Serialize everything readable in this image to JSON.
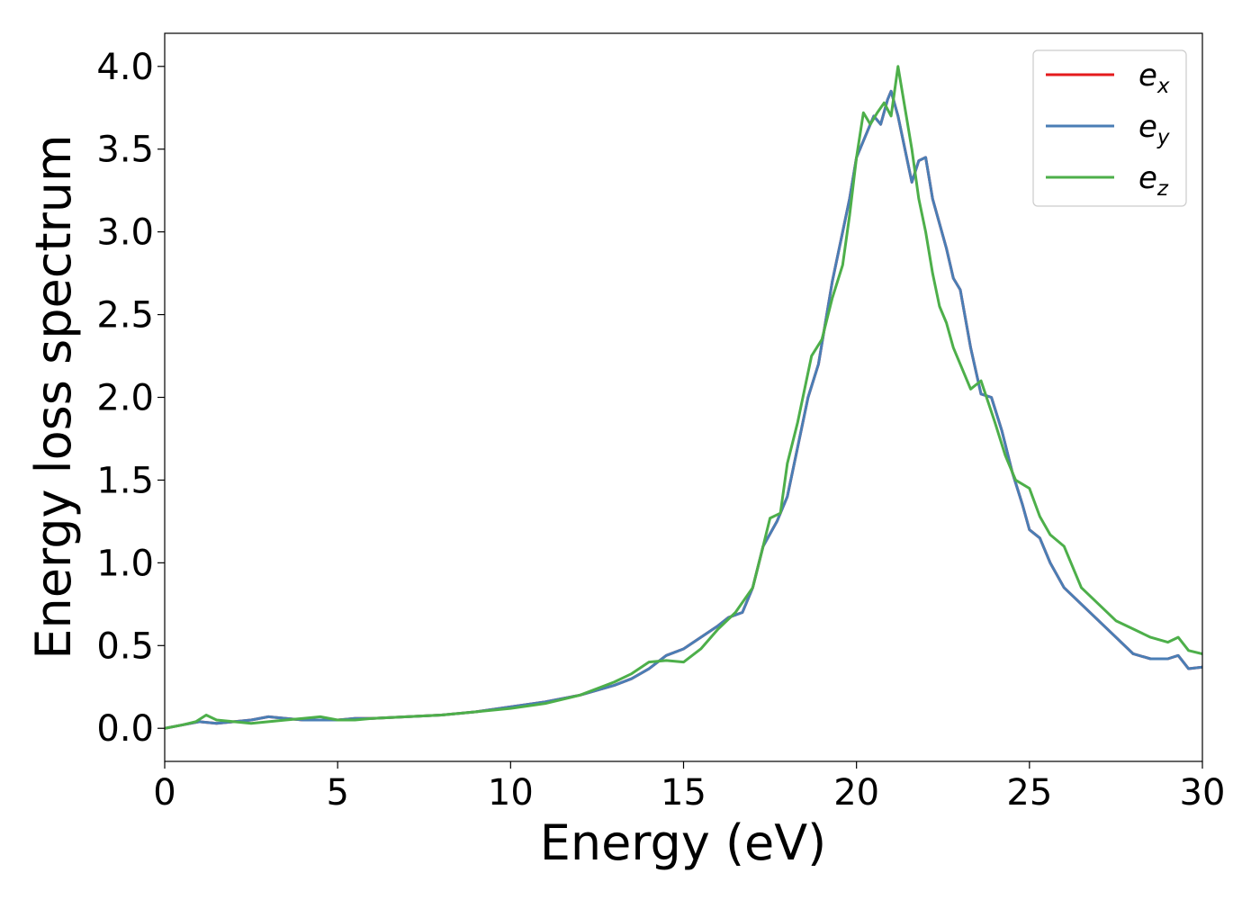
{
  "chart_data": {
    "type": "line",
    "title": "",
    "xlabel": "Energy (eV)",
    "ylabel": "Energy loss spectrum",
    "xlim": [
      0,
      30
    ],
    "ylim": [
      -0.2,
      4.2
    ],
    "xticks": [
      0,
      5,
      10,
      15,
      20,
      25,
      30
    ],
    "xtick_labels": [
      "0",
      "5",
      "10",
      "15",
      "20",
      "25",
      "30"
    ],
    "yticks": [
      0.0,
      0.5,
      1.0,
      1.5,
      2.0,
      2.5,
      3.0,
      3.5,
      4.0
    ],
    "ytick_labels": [
      "0.0",
      "0.5",
      "1.0",
      "1.5",
      "2.0",
      "2.5",
      "3.0",
      "3.5",
      "4.0"
    ],
    "grid": false,
    "legend_position": "top-right",
    "series": [
      {
        "name": "e_x",
        "legend_base": "e",
        "legend_sub": "x",
        "color": "#e41a1c",
        "x": [
          0,
          0.5,
          1.0,
          1.5,
          2.0,
          2.5,
          3.0,
          3.5,
          4.0,
          4.5,
          5.0,
          5.5,
          6.0,
          7.0,
          8.0,
          9.0,
          10.0,
          11.0,
          12.0,
          13.0,
          13.5,
          14.0,
          14.5,
          15.0,
          15.5,
          16.0,
          16.3,
          16.7,
          17.0,
          17.3,
          17.7,
          18.0,
          18.3,
          18.6,
          18.9,
          19.3,
          19.6,
          19.8,
          20.0,
          20.3,
          20.5,
          20.7,
          20.9,
          21.0,
          21.2,
          21.4,
          21.6,
          21.8,
          22.0,
          22.2,
          22.4,
          22.6,
          22.8,
          23.0,
          23.3,
          23.6,
          23.9,
          24.2,
          24.5,
          24.8,
          25.0,
          25.3,
          25.6,
          26.0,
          26.5,
          27.0,
          27.5,
          28.0,
          28.5,
          29.0,
          29.3,
          29.6,
          30.0
        ],
        "values": [
          0.0,
          0.02,
          0.04,
          0.03,
          0.04,
          0.05,
          0.07,
          0.06,
          0.05,
          0.05,
          0.05,
          0.06,
          0.06,
          0.07,
          0.08,
          0.1,
          0.13,
          0.16,
          0.2,
          0.26,
          0.3,
          0.36,
          0.44,
          0.48,
          0.55,
          0.62,
          0.67,
          0.7,
          0.85,
          1.1,
          1.25,
          1.4,
          1.7,
          2.0,
          2.2,
          2.7,
          3.0,
          3.2,
          3.45,
          3.6,
          3.7,
          3.65,
          3.8,
          3.85,
          3.7,
          3.5,
          3.3,
          3.43,
          3.45,
          3.2,
          3.05,
          2.9,
          2.72,
          2.65,
          2.3,
          2.02,
          2.0,
          1.8,
          1.55,
          1.35,
          1.2,
          1.15,
          1.0,
          0.85,
          0.75,
          0.65,
          0.55,
          0.45,
          0.42,
          0.42,
          0.44,
          0.36,
          0.37
        ]
      },
      {
        "name": "e_y",
        "legend_base": "e",
        "legend_sub": "y",
        "color": "#4a7eb5",
        "x": [
          0,
          0.5,
          1.0,
          1.5,
          2.0,
          2.5,
          3.0,
          3.5,
          4.0,
          4.5,
          5.0,
          5.5,
          6.0,
          7.0,
          8.0,
          9.0,
          10.0,
          11.0,
          12.0,
          13.0,
          13.5,
          14.0,
          14.5,
          15.0,
          15.5,
          16.0,
          16.3,
          16.7,
          17.0,
          17.3,
          17.7,
          18.0,
          18.3,
          18.6,
          18.9,
          19.3,
          19.6,
          19.8,
          20.0,
          20.3,
          20.5,
          20.7,
          20.9,
          21.0,
          21.2,
          21.4,
          21.6,
          21.8,
          22.0,
          22.2,
          22.4,
          22.6,
          22.8,
          23.0,
          23.3,
          23.6,
          23.9,
          24.2,
          24.5,
          24.8,
          25.0,
          25.3,
          25.6,
          26.0,
          26.5,
          27.0,
          27.5,
          28.0,
          28.5,
          29.0,
          29.3,
          29.6,
          30.0
        ],
        "values": [
          0.0,
          0.02,
          0.04,
          0.03,
          0.04,
          0.05,
          0.07,
          0.06,
          0.05,
          0.05,
          0.05,
          0.06,
          0.06,
          0.07,
          0.08,
          0.1,
          0.13,
          0.16,
          0.2,
          0.26,
          0.3,
          0.36,
          0.44,
          0.48,
          0.55,
          0.62,
          0.67,
          0.7,
          0.85,
          1.1,
          1.25,
          1.4,
          1.7,
          2.0,
          2.2,
          2.7,
          3.0,
          3.2,
          3.45,
          3.6,
          3.7,
          3.65,
          3.8,
          3.85,
          3.7,
          3.5,
          3.3,
          3.43,
          3.45,
          3.2,
          3.05,
          2.9,
          2.72,
          2.65,
          2.3,
          2.02,
          2.0,
          1.8,
          1.55,
          1.35,
          1.2,
          1.15,
          1.0,
          0.85,
          0.75,
          0.65,
          0.55,
          0.45,
          0.42,
          0.42,
          0.44,
          0.36,
          0.37
        ]
      },
      {
        "name": "e_z",
        "legend_base": "e",
        "legend_sub": "z",
        "color": "#4daf4a",
        "x": [
          0,
          0.5,
          0.9,
          1.2,
          1.5,
          2.0,
          2.5,
          3.0,
          3.5,
          4.0,
          4.5,
          5.0,
          5.5,
          6.0,
          7.0,
          8.0,
          9.0,
          10.0,
          11.0,
          12.0,
          13.0,
          13.5,
          14.0,
          14.5,
          15.0,
          15.5,
          16.0,
          16.5,
          17.0,
          17.3,
          17.5,
          17.8,
          18.0,
          18.3,
          18.7,
          19.0,
          19.3,
          19.6,
          19.8,
          20.0,
          20.2,
          20.4,
          20.6,
          20.8,
          21.0,
          21.2,
          21.4,
          21.6,
          21.8,
          22.0,
          22.2,
          22.4,
          22.6,
          22.8,
          23.0,
          23.3,
          23.6,
          24.0,
          24.3,
          24.6,
          25.0,
          25.3,
          25.6,
          26.0,
          26.5,
          27.0,
          27.5,
          28.0,
          28.5,
          29.0,
          29.3,
          29.6,
          30.0
        ],
        "values": [
          0.0,
          0.02,
          0.04,
          0.08,
          0.05,
          0.04,
          0.03,
          0.04,
          0.05,
          0.06,
          0.07,
          0.05,
          0.05,
          0.06,
          0.07,
          0.08,
          0.1,
          0.12,
          0.15,
          0.2,
          0.28,
          0.33,
          0.4,
          0.41,
          0.4,
          0.48,
          0.6,
          0.7,
          0.85,
          1.1,
          1.27,
          1.3,
          1.6,
          1.85,
          2.25,
          2.35,
          2.6,
          2.8,
          3.1,
          3.45,
          3.72,
          3.65,
          3.72,
          3.78,
          3.7,
          4.0,
          3.75,
          3.5,
          3.2,
          3.0,
          2.75,
          2.55,
          2.45,
          2.3,
          2.2,
          2.05,
          2.1,
          1.85,
          1.65,
          1.5,
          1.45,
          1.28,
          1.17,
          1.1,
          0.85,
          0.75,
          0.65,
          0.6,
          0.55,
          0.52,
          0.55,
          0.47,
          0.45
        ]
      }
    ]
  }
}
